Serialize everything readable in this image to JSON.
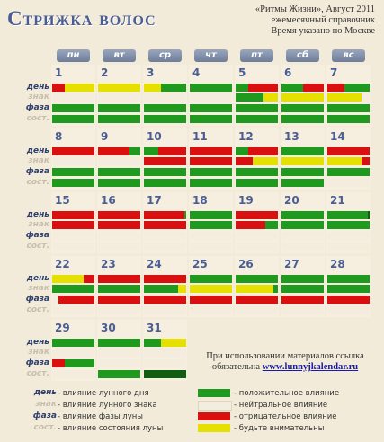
{
  "title": "Стрижка волос",
  "reference": {
    "line1": "«Ритмы Жизни», Август 2011",
    "line2": "ежемесячный справочник",
    "line3": "Время указано по Москве"
  },
  "weekdays": [
    "пн",
    "вт",
    "ср",
    "чт",
    "пт",
    "сб",
    "вс"
  ],
  "row_labels": [
    "день",
    "знак",
    "фаза",
    "сост."
  ],
  "weeks": [
    {
      "days": [
        {
          "num": "1",
          "col": 0,
          "bars": [
            [
              [
                "r",
                0.3
              ],
              [
                "y",
                0.7
              ]
            ],
            [
              [
                "l",
                1
              ]
            ],
            [
              [
                "g",
                1
              ]
            ],
            [
              [
                "g",
                1
              ]
            ]
          ]
        },
        {
          "num": "2",
          "col": 1,
          "bars": [
            [
              [
                "y",
                1
              ]
            ],
            [
              [
                "l",
                1
              ]
            ],
            [
              [
                "g",
                1
              ]
            ],
            [
              [
                "g",
                1
              ]
            ]
          ]
        },
        {
          "num": "3",
          "col": 2,
          "bars": [
            [
              [
                "y",
                0.4
              ],
              [
                "g",
                0.6
              ]
            ],
            [
              [
                "l",
                1
              ]
            ],
            [
              [
                "g",
                1
              ]
            ],
            [
              [
                "g",
                1
              ]
            ]
          ]
        },
        {
          "num": "4",
          "col": 3,
          "bars": [
            [
              [
                "g",
                0.45
              ],
              [
                "g",
                0.55
              ]
            ],
            [
              [
                "l",
                1
              ]
            ],
            [
              [
                "g",
                1
              ]
            ],
            [
              [
                "g",
                1
              ]
            ]
          ]
        },
        {
          "num": "5",
          "col": 4,
          "bars": [
            [
              [
                "g",
                0.3
              ],
              [
                "r",
                0.7
              ]
            ],
            [
              [
                "g",
                0.65
              ],
              [
                "y",
                0.35
              ]
            ],
            [
              [
                "g",
                1
              ]
            ],
            [
              [
                "g",
                1
              ]
            ]
          ]
        },
        {
          "num": "6",
          "col": 5,
          "bars": [
            [
              [
                "g",
                0.5
              ],
              [
                "r",
                0.5
              ]
            ],
            [
              [
                "y",
                1
              ]
            ],
            [
              [
                "g",
                1
              ]
            ],
            [
              [
                "g",
                1
              ]
            ]
          ]
        },
        {
          "num": "7",
          "col": 6,
          "bars": [
            [
              [
                "r",
                0.4
              ],
              [
                "g",
                0.6
              ]
            ],
            [
              [
                "y",
                0.8
              ],
              [
                "l",
                0.2
              ]
            ],
            [
              [
                "g",
                1
              ]
            ],
            [
              [
                "g",
                1
              ]
            ]
          ]
        }
      ]
    },
    {
      "days": [
        {
          "num": "8",
          "col": 0,
          "bars": [
            [
              [
                "r",
                1
              ]
            ],
            [
              [
                "l",
                1
              ]
            ],
            [
              [
                "g",
                1
              ]
            ],
            [
              [
                "g",
                1
              ]
            ]
          ]
        },
        {
          "num": "9",
          "col": 1,
          "bars": [
            [
              [
                "r",
                0.75
              ],
              [
                "g",
                0.25
              ]
            ],
            [
              [
                "l",
                1
              ]
            ],
            [
              [
                "g",
                1
              ]
            ],
            [
              [
                "g",
                1
              ]
            ]
          ]
        },
        {
          "num": "10",
          "col": 2,
          "bars": [
            [
              [
                "g",
                0.35
              ],
              [
                "r",
                0.65
              ]
            ],
            [
              [
                "r",
                1
              ]
            ],
            [
              [
                "g",
                1
              ]
            ],
            [
              [
                "g",
                1
              ]
            ]
          ]
        },
        {
          "num": "11",
          "col": 3,
          "bars": [
            [
              [
                "r",
                1
              ]
            ],
            [
              [
                "r",
                1
              ]
            ],
            [
              [
                "g",
                1
              ]
            ],
            [
              [
                "g",
                1
              ]
            ]
          ]
        },
        {
          "num": "12",
          "col": 4,
          "bars": [
            [
              [
                "g",
                0.3
              ],
              [
                "r",
                0.7
              ]
            ],
            [
              [
                "r",
                0.4
              ],
              [
                "y",
                0.6
              ]
            ],
            [
              [
                "g",
                1
              ]
            ],
            [
              [
                "g",
                1
              ]
            ]
          ]
        },
        {
          "num": "13",
          "col": 5,
          "bars": [
            [
              [
                "g",
                1
              ]
            ],
            [
              [
                "y",
                1
              ]
            ],
            [
              [
                "g",
                1
              ]
            ],
            [
              [
                "g",
                1
              ]
            ]
          ]
        },
        {
          "num": "14",
          "col": 6,
          "bars": [
            [
              [
                "r",
                1
              ]
            ],
            [
              [
                "y",
                0.8
              ],
              [
                "r",
                0.2
              ]
            ],
            [
              [
                "g",
                1
              ]
            ],
            [
              [
                "l",
                1
              ]
            ]
          ]
        }
      ]
    },
    {
      "days": [
        {
          "num": "15",
          "col": 0,
          "bars": [
            [
              [
                "r",
                1
              ]
            ],
            [
              [
                "r",
                1
              ]
            ],
            [
              [
                "l",
                1
              ]
            ],
            [
              [
                "l",
                1
              ]
            ]
          ]
        },
        {
          "num": "16",
          "col": 1,
          "bars": [
            [
              [
                "r",
                1
              ]
            ],
            [
              [
                "r",
                1
              ]
            ],
            [
              [
                "l",
                1
              ]
            ],
            [
              [
                "l",
                1
              ]
            ]
          ]
        },
        {
          "num": "17",
          "col": 2,
          "bars": [
            [
              [
                "r",
                0.95
              ],
              [
                "g",
                0.05
              ]
            ],
            [
              [
                "r",
                1
              ]
            ],
            [
              [
                "l",
                1
              ]
            ],
            [
              [
                "l",
                1
              ]
            ]
          ]
        },
        {
          "num": "18",
          "col": 3,
          "bars": [
            [
              [
                "g",
                1
              ]
            ],
            [
              [
                "g",
                1
              ]
            ],
            [
              [
                "l",
                1
              ]
            ],
            [
              [
                "l",
                1
              ]
            ]
          ]
        },
        {
          "num": "19",
          "col": 4,
          "bars": [
            [
              [
                "r",
                1
              ]
            ],
            [
              [
                "r",
                0.7
              ],
              [
                "g",
                0.3
              ]
            ],
            [
              [
                "l",
                1
              ]
            ],
            [
              [
                "l",
                1
              ]
            ]
          ]
        },
        {
          "num": "20",
          "col": 5,
          "bars": [
            [
              [
                "g",
                1
              ]
            ],
            [
              [
                "g",
                1
              ]
            ],
            [
              [
                "l",
                1
              ]
            ],
            [
              [
                "l",
                1
              ]
            ]
          ]
        },
        {
          "num": "21",
          "col": 6,
          "bars": [
            [
              [
                "g",
                0.95
              ],
              [
                "d",
                0.05
              ]
            ],
            [
              [
                "g",
                1
              ]
            ],
            [
              [
                "l",
                1
              ]
            ],
            [
              [
                "l",
                1
              ]
            ]
          ]
        }
      ]
    },
    {
      "days": [
        {
          "num": "22",
          "col": 0,
          "bars": [
            [
              [
                "y",
                0.75
              ],
              [
                "r",
                0.25
              ]
            ],
            [
              [
                "g",
                1
              ]
            ],
            [
              [
                "l",
                0.15
              ],
              [
                "r",
                0.85
              ]
            ],
            [
              [
                "l",
                1
              ]
            ]
          ]
        },
        {
          "num": "23",
          "col": 1,
          "bars": [
            [
              [
                "r",
                1
              ]
            ],
            [
              [
                "g",
                1
              ]
            ],
            [
              [
                "r",
                1
              ]
            ],
            [
              [
                "l",
                1
              ]
            ]
          ]
        },
        {
          "num": "24",
          "col": 2,
          "bars": [
            [
              [
                "r",
                1
              ]
            ],
            [
              [
                "g",
                0.8
              ],
              [
                "y",
                0.2
              ]
            ],
            [
              [
                "r",
                1
              ]
            ],
            [
              [
                "l",
                1
              ]
            ]
          ]
        },
        {
          "num": "25",
          "col": 3,
          "bars": [
            [
              [
                "g",
                1
              ]
            ],
            [
              [
                "y",
                1
              ]
            ],
            [
              [
                "r",
                1
              ]
            ],
            [
              [
                "l",
                1
              ]
            ]
          ]
        },
        {
          "num": "26",
          "col": 4,
          "bars": [
            [
              [
                "g",
                1
              ]
            ],
            [
              [
                "y",
                0.9
              ],
              [
                "g",
                0.1
              ]
            ],
            [
              [
                "r",
                1
              ]
            ],
            [
              [
                "l",
                1
              ]
            ]
          ]
        },
        {
          "num": "27",
          "col": 5,
          "bars": [
            [
              [
                "g",
                1
              ]
            ],
            [
              [
                "g",
                1
              ]
            ],
            [
              [
                "r",
                1
              ]
            ],
            [
              [
                "l",
                1
              ]
            ]
          ]
        },
        {
          "num": "28",
          "col": 6,
          "bars": [
            [
              [
                "g",
                1
              ]
            ],
            [
              [
                "g",
                1
              ]
            ],
            [
              [
                "r",
                1
              ]
            ],
            [
              [
                "l",
                1
              ]
            ]
          ]
        }
      ]
    },
    {
      "days": [
        {
          "num": "29",
          "col": 0,
          "bars": [
            [
              [
                "g",
                1
              ]
            ],
            [
              [
                "l",
                1
              ]
            ],
            [
              [
                "r",
                0.3
              ],
              [
                "g",
                0.7
              ]
            ],
            [
              [
                "l",
                1
              ]
            ]
          ]
        },
        {
          "num": "30",
          "col": 1,
          "bars": [
            [
              [
                "g",
                1
              ]
            ],
            [
              [
                "l",
                1
              ]
            ],
            [
              [
                "l",
                1
              ]
            ],
            [
              [
                "g",
                1
              ]
            ]
          ]
        },
        {
          "num": "31",
          "col": 2,
          "bars": [
            [
              [
                "g",
                0.4
              ],
              [
                "y",
                0.6
              ]
            ],
            [
              [
                "l",
                1
              ]
            ],
            [
              [
                "l",
                1
              ]
            ],
            [
              [
                "d",
                1
              ]
            ]
          ]
        }
      ]
    }
  ],
  "copyright": {
    "line1": "При использовании материалов ссылка",
    "line2_prefix": "обязательна ",
    "link": "www.lunnyjkalendar.ru"
  },
  "legend_left": [
    {
      "label": "день",
      "text": "- влияние лунного дня",
      "faint": false
    },
    {
      "label": "знак",
      "text": "- влияние лунного знака",
      "faint": true
    },
    {
      "label": "фаза",
      "text": "- влияние фазы луны",
      "faint": false
    },
    {
      "label": "сост.",
      "text": "- влияние состояния луны",
      "faint": true
    }
  ],
  "legend_right": [
    {
      "color": "#1f9a1f",
      "text": "- положительное влияние"
    },
    {
      "color": "#f4ecdc",
      "text": "- нейтральное влияние"
    },
    {
      "color": "#d81010",
      "text": "- отрицательное влияние"
    },
    {
      "color": "#e6e000",
      "text": "- будьте внимательны"
    }
  ],
  "colors": {
    "g": "#1f9a1f",
    "l": "#f4ecdc",
    "r": "#d81010",
    "y": "#e6e000",
    "d": "#105f10",
    "accent": "#4a5e93"
  }
}
